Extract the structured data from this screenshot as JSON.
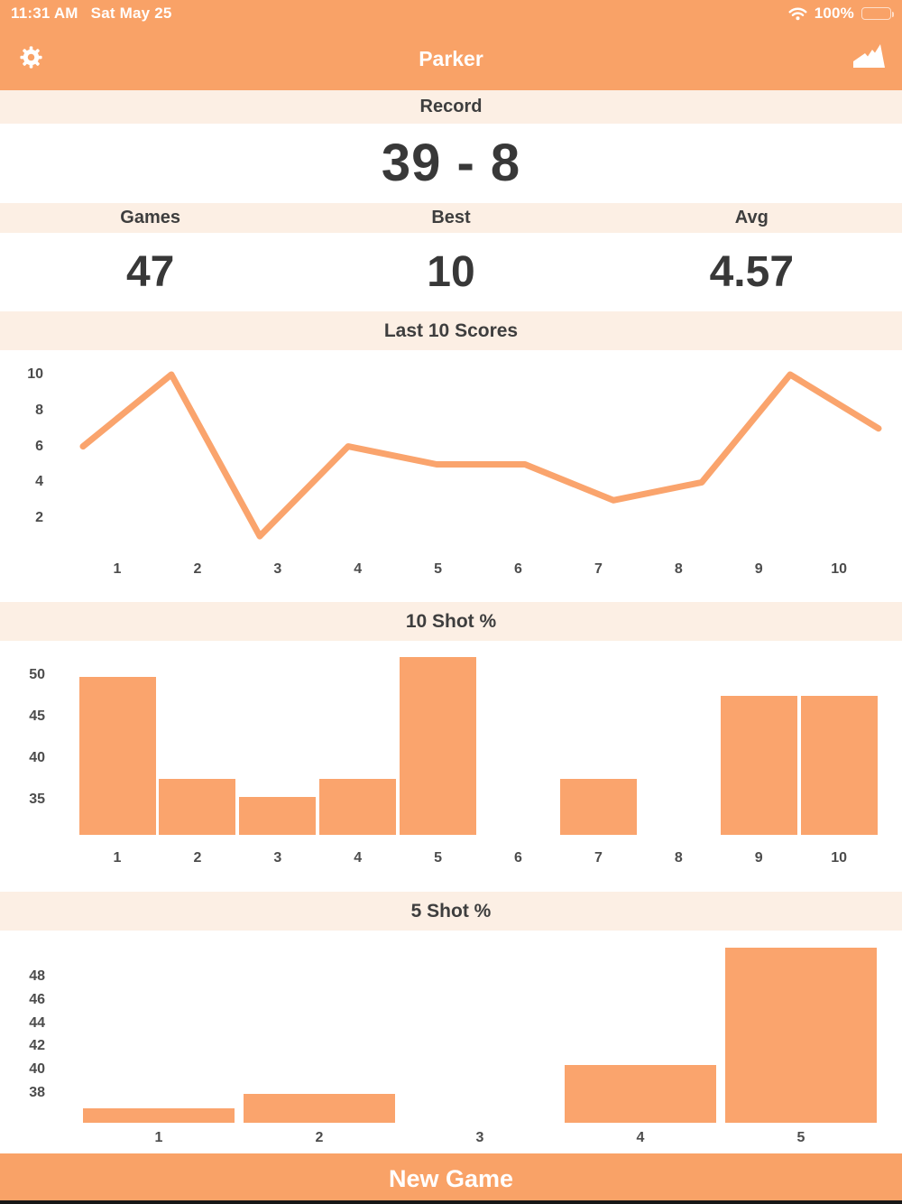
{
  "status_bar": {
    "time": "11:31 AM",
    "date": "Sat May 25",
    "battery": "100%"
  },
  "nav": {
    "title": "Parker"
  },
  "record": {
    "label": "Record",
    "value": "39 - 8"
  },
  "stats": [
    {
      "label": "Games",
      "value": "47"
    },
    {
      "label": "Best",
      "value": "10"
    },
    {
      "label": "Avg",
      "value": "4.57"
    }
  ],
  "footer": {
    "new_game_label": "New Game"
  },
  "colors": {
    "accent": "#F9A267",
    "bar": "#FAA46D",
    "line": "#FAA46D",
    "band": "#FCEFE4",
    "text_dark": "#3E3E3E",
    "axis_label": "#4C4C4C"
  },
  "chart_data": [
    {
      "id": "last10",
      "type": "line",
      "title": "Last 10 Scores",
      "categories": [
        "1",
        "2",
        "3",
        "4",
        "5",
        "6",
        "7",
        "8",
        "9",
        "10"
      ],
      "values": [
        6,
        10,
        1,
        6,
        5,
        5,
        3,
        4,
        10,
        7
      ],
      "yticks": [
        2,
        4,
        6,
        8,
        10
      ],
      "ylim": [
        0,
        10.5
      ],
      "grid": false,
      "legend": "none",
      "xlabel": "",
      "ylabel": ""
    },
    {
      "id": "shot10",
      "type": "bar",
      "title": "10 Shot %",
      "categories": [
        "1",
        "2",
        "3",
        "4",
        "5",
        "6",
        "7",
        "8",
        "9",
        "10"
      ],
      "values": [
        49.8,
        37.5,
        35.3,
        37.5,
        52.2,
        null,
        37.5,
        null,
        47.5,
        47.5
      ],
      "yticks": [
        35,
        40,
        45,
        50
      ],
      "ylim": [
        30.7,
        53.5
      ],
      "grid": false,
      "legend": "none",
      "xlabel": "",
      "ylabel": ""
    },
    {
      "id": "shot5",
      "type": "bar",
      "title": "5 Shot %",
      "categories": [
        "1",
        "2",
        "3",
        "4",
        "5"
      ],
      "values": [
        36.7,
        37.9,
        null,
        40.4,
        50.5
      ],
      "yticks": [
        38,
        40,
        42,
        44,
        46,
        48
      ],
      "ylim": [
        35.4,
        51.5
      ],
      "grid": false,
      "legend": "none",
      "xlabel": "",
      "ylabel": ""
    }
  ]
}
